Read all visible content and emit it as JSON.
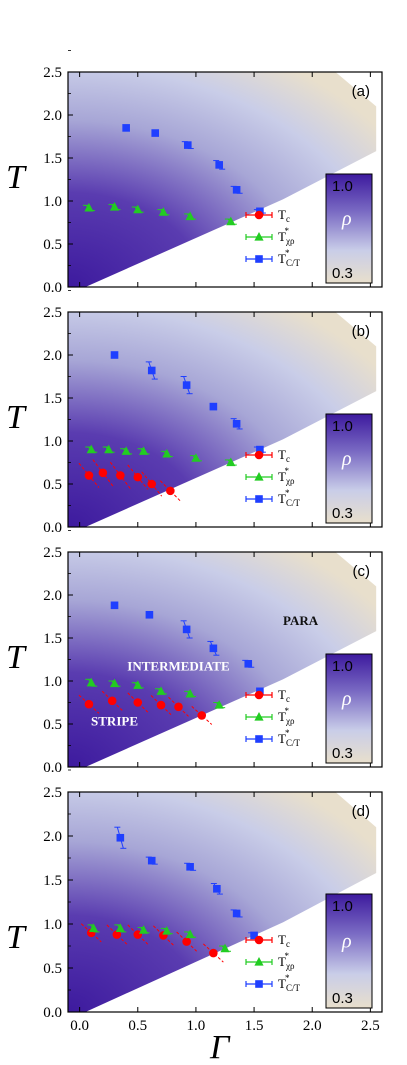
{
  "colors": {
    "tc": "#ff0000",
    "tchi": "#22cc22",
    "tct": "#1f3fff",
    "cmap_high": "#3d1a9e",
    "cmap_mid": "#c9cde8",
    "cmap_low": "#e8dfcc"
  },
  "figure": {
    "xlabel": "Γ",
    "ylabel": "T"
  },
  "chart_data": [
    {
      "type": "scatter",
      "panel": "(a)",
      "xlim": [
        -0.1,
        2.6
      ],
      "ylim": [
        0.0,
        2.5
      ],
      "xticks": [],
      "yticks": [
        "0.0",
        "0.5",
        "1.0",
        "1.5",
        "2.0",
        "2.5"
      ],
      "colorbar": {
        "label": "ρ",
        "max": "1.0",
        "min": "0.3"
      },
      "legend": [
        "Tc",
        "Tχρ*",
        "TC/T*"
      ],
      "legend_position": "lower-right",
      "series": [
        {
          "name": "Tχρ*",
          "marker": "triangle",
          "color_key": "tchi",
          "points": [
            [
              0.08,
              0.92,
              0.03
            ],
            [
              0.3,
              0.93,
              0.03
            ],
            [
              0.5,
              0.9,
              0.03
            ],
            [
              0.72,
              0.87,
              0.03
            ],
            [
              0.95,
              0.82,
              0.03
            ],
            [
              1.3,
              0.76,
              0.03
            ]
          ]
        },
        {
          "name": "TC/T*",
          "marker": "square",
          "color_key": "tct",
          "points": [
            [
              0.4,
              1.85,
              0.0
            ],
            [
              0.65,
              1.79,
              0.0
            ],
            [
              0.93,
              1.65,
              0.04
            ],
            [
              1.2,
              1.42,
              0.05
            ],
            [
              1.35,
              1.13,
              0.04
            ],
            [
              1.55,
              0.88,
              0.02
            ]
          ]
        }
      ],
      "regions": []
    },
    {
      "type": "scatter",
      "panel": "(b)",
      "xlim": [
        -0.1,
        2.6
      ],
      "ylim": [
        0.0,
        2.5
      ],
      "xticks": [],
      "yticks": [
        "0.0",
        "0.5",
        "1.0",
        "1.5",
        "2.0",
        "2.5"
      ],
      "colorbar": {
        "label": "ρ",
        "max": "1.0",
        "min": "0.3"
      },
      "legend": [
        "Tc",
        "Tχρ*",
        "TC/T*"
      ],
      "legend_position": "lower-right",
      "series": [
        {
          "name": "Tc",
          "marker": "circle",
          "color_key": "tc",
          "points": [
            [
              0.08,
              0.6,
              0.1
            ],
            [
              0.2,
              0.63,
              0.12
            ],
            [
              0.35,
              0.6,
              0.12
            ],
            [
              0.5,
              0.58,
              0.1
            ],
            [
              0.62,
              0.5,
              0.1
            ],
            [
              0.78,
              0.42,
              0.06
            ]
          ]
        },
        {
          "name": "Tχρ*",
          "marker": "triangle",
          "color_key": "tchi",
          "points": [
            [
              0.1,
              0.9,
              0.03
            ],
            [
              0.25,
              0.9,
              0.03
            ],
            [
              0.4,
              0.88,
              0.03
            ],
            [
              0.55,
              0.88,
              0.03
            ],
            [
              0.75,
              0.85,
              0.03
            ],
            [
              1.0,
              0.8,
              0.03
            ],
            [
              1.3,
              0.75,
              0.03
            ]
          ]
        },
        {
          "name": "TC/T*",
          "marker": "square",
          "color_key": "tct",
          "points": [
            [
              0.3,
              2.0,
              0.0
            ],
            [
              0.62,
              1.82,
              0.1
            ],
            [
              0.92,
              1.65,
              0.1
            ],
            [
              1.15,
              1.4,
              0.0
            ],
            [
              1.35,
              1.2,
              0.06
            ],
            [
              1.55,
              0.9,
              0.03
            ]
          ]
        }
      ],
      "regions": []
    },
    {
      "type": "scatter",
      "panel": "(c)",
      "xlim": [
        -0.1,
        2.6
      ],
      "ylim": [
        0.0,
        2.5
      ],
      "xticks": [],
      "yticks": [
        "0.0",
        "0.5",
        "1.0",
        "1.5",
        "2.0",
        "2.5"
      ],
      "colorbar": {
        "label": "ρ",
        "max": "1.0",
        "min": "0.3"
      },
      "legend": [
        "Tc",
        "Tχρ*",
        "TC/T*"
      ],
      "legend_position": "lower-right",
      "series": [
        {
          "name": "Tc",
          "marker": "circle",
          "color_key": "tc",
          "points": [
            [
              0.08,
              0.73,
              0.04
            ],
            [
              0.28,
              0.77,
              0.05
            ],
            [
              0.5,
              0.75,
              0.05
            ],
            [
              0.7,
              0.72,
              0.05
            ],
            [
              0.85,
              0.7,
              0.05
            ],
            [
              1.05,
              0.6,
              0.04
            ]
          ]
        },
        {
          "name": "Tχρ*",
          "marker": "triangle",
          "color_key": "tchi",
          "points": [
            [
              0.1,
              0.98,
              0.04
            ],
            [
              0.3,
              0.97,
              0.03
            ],
            [
              0.5,
              0.95,
              0.03
            ],
            [
              0.7,
              0.88,
              0.03
            ],
            [
              0.95,
              0.85,
              0.03
            ],
            [
              1.2,
              0.72,
              0.03
            ]
          ]
        },
        {
          "name": "TC/T*",
          "marker": "square",
          "color_key": "tct",
          "points": [
            [
              0.3,
              1.88,
              0.0
            ],
            [
              0.6,
              1.77,
              0.0
            ],
            [
              0.92,
              1.6,
              0.1
            ],
            [
              1.15,
              1.38,
              0.08
            ],
            [
              1.45,
              1.2,
              0.04
            ],
            [
              1.55,
              0.88,
              0.0
            ]
          ]
        }
      ],
      "regions": [
        {
          "text": "PARA",
          "x": 1.9,
          "y": 1.65,
          "color": "#111111"
        },
        {
          "text": "INTERMEDIATE",
          "x": 0.85,
          "y": 1.12,
          "color": "#ffffff"
        },
        {
          "text": "STRIPE",
          "x": 0.3,
          "y": 0.48,
          "color": "#ffffff"
        }
      ]
    },
    {
      "type": "scatter",
      "panel": "(d)",
      "xlim": [
        -0.1,
        2.6
      ],
      "ylim": [
        0.0,
        2.5
      ],
      "xticks": [
        "0.0",
        "0.5",
        "1.0",
        "1.5",
        "2.0",
        "2.5"
      ],
      "yticks": [
        "0.0",
        "0.5",
        "1.0",
        "1.5",
        "2.0",
        "2.5"
      ],
      "colorbar": {
        "label": "ρ",
        "max": "1.0",
        "min": "0.3"
      },
      "legend": [
        "Tc",
        "Tχρ*",
        "TC/T*"
      ],
      "legend_position": "lower-right",
      "series": [
        {
          "name": "Tc",
          "marker": "circle",
          "color_key": "tc",
          "points": [
            [
              0.1,
              0.9,
              0.04
            ],
            [
              0.32,
              0.88,
              0.05
            ],
            [
              0.5,
              0.88,
              0.05
            ],
            [
              0.72,
              0.87,
              0.05
            ],
            [
              0.92,
              0.8,
              0.05
            ],
            [
              1.15,
              0.67,
              0.04
            ]
          ]
        },
        {
          "name": "Tχρ*",
          "marker": "triangle",
          "color_key": "tchi",
          "points": [
            [
              0.12,
              0.95,
              0.04
            ],
            [
              0.35,
              0.95,
              0.04
            ],
            [
              0.55,
              0.93,
              0.03
            ],
            [
              0.75,
              0.92,
              0.03
            ],
            [
              0.95,
              0.88,
              0.03
            ],
            [
              1.25,
              0.72,
              0.03
            ]
          ]
        },
        {
          "name": "TC/T*",
          "marker": "square",
          "color_key": "tct",
          "points": [
            [
              0.35,
              1.98,
              0.12
            ],
            [
              0.62,
              1.72,
              0.04
            ],
            [
              0.95,
              1.65,
              0.04
            ],
            [
              1.18,
              1.4,
              0.06
            ],
            [
              1.35,
              1.12,
              0.04
            ],
            [
              1.5,
              0.87,
              0.03
            ]
          ]
        }
      ],
      "regions": []
    }
  ]
}
